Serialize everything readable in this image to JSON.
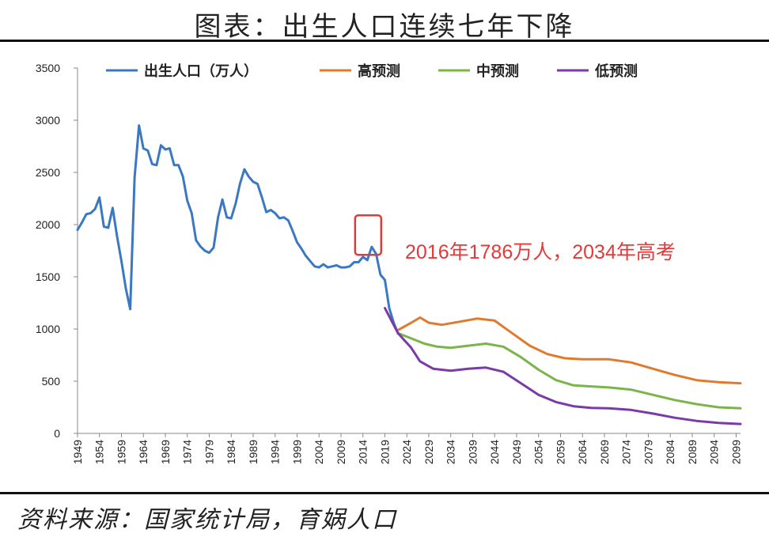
{
  "title": "图表：出生人口连续七年下降",
  "source": "资料来源：国家统计局，育娲人口",
  "chart_data": {
    "type": "line",
    "ylim": [
      0,
      3500
    ],
    "xlim": [
      1949,
      2100
    ],
    "yticks": [
      0,
      500,
      1000,
      1500,
      2000,
      2500,
      3000,
      3500
    ],
    "xticks": [
      1949,
      1954,
      1959,
      1964,
      1969,
      1974,
      1979,
      1984,
      1989,
      1994,
      1999,
      2004,
      2009,
      2014,
      2019,
      2024,
      2029,
      2034,
      2039,
      2044,
      2049,
      2054,
      2059,
      2064,
      2069,
      2074,
      2079,
      2084,
      2089,
      2094,
      2099
    ],
    "grid": false,
    "legend_position": "top",
    "annotation": {
      "text": "2016年1786万人，2034年高考",
      "year": 2016,
      "value": 1786
    },
    "series": [
      {
        "name": "出生人口（万人）",
        "color": "#3b78c2",
        "x": [
          1949,
          1950,
          1951,
          1952,
          1953,
          1954,
          1955,
          1956,
          1957,
          1958,
          1959,
          1960,
          1961,
          1962,
          1963,
          1964,
          1965,
          1966,
          1967,
          1968,
          1969,
          1970,
          1971,
          1972,
          1973,
          1974,
          1975,
          1976,
          1977,
          1978,
          1979,
          1980,
          1981,
          1982,
          1983,
          1984,
          1985,
          1986,
          1987,
          1988,
          1989,
          1990,
          1991,
          1992,
          1993,
          1994,
          1995,
          1996,
          1997,
          1998,
          1999,
          2000,
          2001,
          2002,
          2003,
          2004,
          2005,
          2006,
          2007,
          2008,
          2009,
          2010,
          2011,
          2012,
          2013,
          2014,
          2015,
          2016,
          2017,
          2018,
          2019,
          2020,
          2021,
          2022
        ],
        "values": [
          1950,
          2020,
          2100,
          2110,
          2150,
          2260,
          1980,
          1970,
          2160,
          1890,
          1650,
          1390,
          1190,
          2450,
          2950,
          2730,
          2710,
          2580,
          2570,
          2760,
          2720,
          2730,
          2570,
          2570,
          2460,
          2230,
          2110,
          1850,
          1790,
          1750,
          1730,
          1780,
          2070,
          2240,
          2070,
          2060,
          2200,
          2390,
          2530,
          2460,
          2410,
          2390,
          2260,
          2120,
          2140,
          2110,
          2060,
          2070,
          2040,
          1940,
          1830,
          1770,
          1700,
          1650,
          1600,
          1590,
          1620,
          1590,
          1600,
          1610,
          1590,
          1590,
          1600,
          1640,
          1640,
          1690,
          1660,
          1786,
          1720,
          1520,
          1470,
          1200,
          1060,
          956
        ]
      },
      {
        "name": "高预测",
        "color": "#e07b2e",
        "x": [
          2022,
          2025,
          2027,
          2029,
          2032,
          2036,
          2040,
          2044,
          2048,
          2052,
          2056,
          2060,
          2064,
          2070,
          2075,
          2080,
          2085,
          2090,
          2095,
          2100
        ],
        "values": [
          990,
          1060,
          1110,
          1060,
          1040,
          1070,
          1100,
          1080,
          960,
          840,
          760,
          720,
          710,
          710,
          680,
          620,
          560,
          510,
          490,
          480
        ]
      },
      {
        "name": "中预测",
        "color": "#7bb54a",
        "x": [
          2022,
          2025,
          2028,
          2031,
          2034,
          2038,
          2042,
          2046,
          2050,
          2054,
          2058,
          2062,
          2066,
          2070,
          2075,
          2080,
          2085,
          2090,
          2095,
          2100
        ],
        "values": [
          960,
          910,
          860,
          830,
          820,
          840,
          860,
          830,
          730,
          610,
          510,
          460,
          450,
          440,
          420,
          370,
          320,
          280,
          250,
          240
        ]
      },
      {
        "name": "低预测",
        "color": "#7a3aa8",
        "x": [
          2019,
          2022,
          2025,
          2027,
          2030,
          2034,
          2038,
          2042,
          2046,
          2050,
          2054,
          2058,
          2062,
          2066,
          2070,
          2075,
          2080,
          2085,
          2090,
          2095,
          2100
        ],
        "values": [
          1200,
          960,
          820,
          690,
          620,
          600,
          620,
          630,
          590,
          480,
          370,
          300,
          260,
          245,
          240,
          225,
          190,
          150,
          120,
          100,
          90
        ]
      }
    ]
  }
}
